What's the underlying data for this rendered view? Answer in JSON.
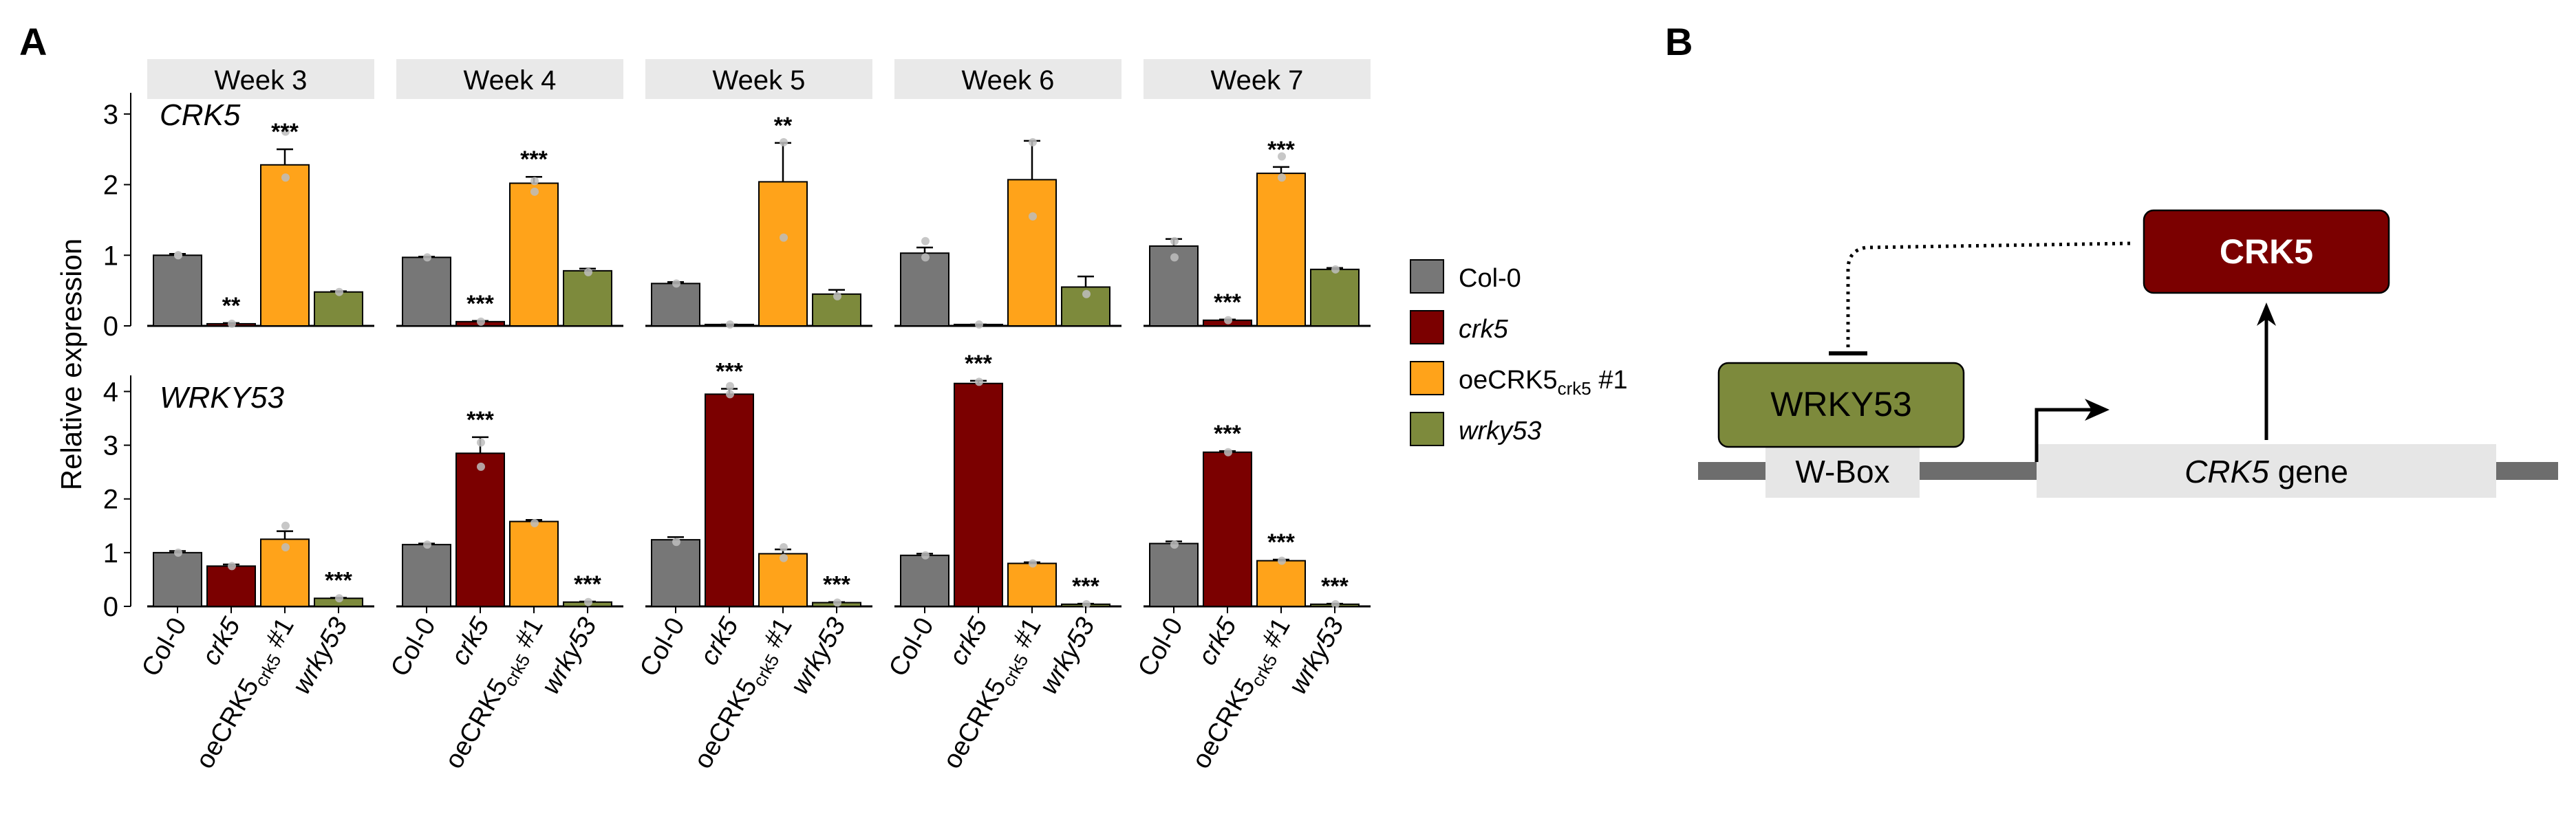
{
  "panel_labels": {
    "a": "A",
    "b": "B"
  },
  "chart_data": {
    "type": "bar",
    "ylabel": "Relative expression",
    "weeks": [
      "Week 3",
      "Week 4",
      "Week 5",
      "Week 6",
      "Week 7"
    ],
    "genotypes": [
      {
        "name": "Col-0",
        "italic": false,
        "color": "#777777"
      },
      {
        "name": "crk5",
        "italic": true,
        "color": "#7b0000"
      },
      {
        "name": "oeCRK5",
        "sub": "crk5",
        "suffix": " #1",
        "italic": false,
        "color": "#ffa31a"
      },
      {
        "name": "wrky53",
        "italic": true,
        "color": "#7d8a3c"
      }
    ],
    "rows": [
      {
        "gene": "CRK5",
        "ylim": [
          0,
          3.3
        ],
        "ticks": [
          "0",
          "1",
          "2",
          "3"
        ],
        "values": [
          [
            1.0,
            0.03,
            2.28,
            0.48
          ],
          [
            0.97,
            0.06,
            2.02,
            0.78
          ],
          [
            0.6,
            0.02,
            2.04,
            0.45
          ],
          [
            1.03,
            0.02,
            2.07,
            0.55
          ],
          [
            1.13,
            0.08,
            2.16,
            0.8
          ]
        ],
        "errors": [
          [
            0.02,
            0.01,
            0.22,
            0.01
          ],
          [
            0.01,
            0.01,
            0.09,
            0.03
          ],
          [
            0.02,
            0.0,
            0.55,
            0.06
          ],
          [
            0.08,
            0.0,
            0.55,
            0.15
          ],
          [
            0.1,
            0.01,
            0.09,
            0.02
          ]
        ],
        "points": [
          [
            [
              1.0,
              1.0
            ],
            [
              0.03
            ],
            [
              2.1,
              2.75
            ],
            [
              0.48
            ]
          ],
          [
            [
              0.97
            ],
            [
              0.06
            ],
            [
              1.9,
              2.05
            ],
            [
              0.76
            ]
          ],
          [
            [
              0.6
            ],
            [
              0.02
            ],
            [
              1.25,
              2.6
            ],
            [
              0.42
            ]
          ],
          [
            [
              0.97,
              1.2
            ],
            [
              0.02
            ],
            [
              1.55,
              2.6
            ],
            [
              0.45
            ]
          ],
          [
            [
              0.97,
              1.2
            ],
            [
              0.08
            ],
            [
              2.1,
              2.4
            ],
            [
              0.8
            ]
          ]
        ],
        "sig": [
          [
            "",
            "**",
            "***",
            ""
          ],
          [
            "",
            "***",
            "***",
            ""
          ],
          [
            "",
            "",
            "**",
            ""
          ],
          [
            "",
            "",
            "",
            ""
          ],
          [
            "",
            "***",
            "***",
            ""
          ]
        ]
      },
      {
        "gene": "WRKY53",
        "ylim": [
          0,
          4.3
        ],
        "ticks": [
          "0",
          "1",
          "2",
          "3",
          "4"
        ],
        "values": [
          [
            1.0,
            0.75,
            1.25,
            0.15
          ],
          [
            1.15,
            2.85,
            1.58,
            0.08
          ],
          [
            1.24,
            3.95,
            0.98,
            0.07
          ],
          [
            0.95,
            4.15,
            0.8,
            0.04
          ],
          [
            1.17,
            2.87,
            0.85,
            0.04
          ]
        ],
        "errors": [
          [
            0.03,
            0.03,
            0.15,
            0.01
          ],
          [
            0.02,
            0.3,
            0.03,
            0.01
          ],
          [
            0.05,
            0.1,
            0.08,
            0.01
          ],
          [
            0.03,
            0.05,
            0.02,
            0.01
          ],
          [
            0.04,
            0.02,
            0.02,
            0.01
          ]
        ],
        "points": [
          [
            [
              1.0
            ],
            [
              0.75
            ],
            [
              1.1,
              1.5
            ],
            [
              0.15
            ]
          ],
          [
            [
              1.15
            ],
            [
              2.6,
              3.05
            ],
            [
              1.55
            ],
            [
              0.08
            ]
          ],
          [
            [
              1.2
            ],
            [
              3.95,
              4.1
            ],
            [
              0.9,
              1.1
            ],
            [
              0.07
            ]
          ],
          [
            [
              0.95
            ],
            [
              4.18
            ],
            [
              0.8
            ],
            [
              0.04
            ]
          ],
          [
            [
              1.15
            ],
            [
              2.87
            ],
            [
              0.85
            ],
            [
              0.04
            ]
          ]
        ],
        "sig": [
          [
            "",
            "",
            "",
            "***"
          ],
          [
            "",
            "***",
            "",
            "***"
          ],
          [
            "",
            "***",
            "",
            "***"
          ],
          [
            "",
            "***",
            "",
            "***"
          ],
          [
            "",
            "***",
            "***",
            "***"
          ]
        ]
      }
    ]
  },
  "legend": {
    "items": [
      "Col-0",
      "crk5",
      "oeCRK5",
      "wrky53"
    ],
    "oe_sub": "crk5",
    "oe_suffix": " #1"
  },
  "diagram": {
    "crk5_protein": "CRK5",
    "wrky53_protein": "WRKY53",
    "wbox": "W-Box",
    "gene_italic": "CRK5",
    "gene_suffix": " gene"
  }
}
